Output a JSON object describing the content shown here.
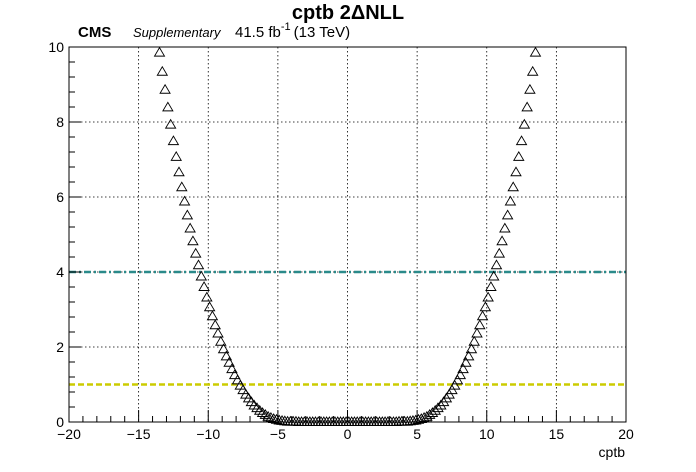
{
  "header": {
    "title": "cptb 2ΔNLL",
    "cms": "CMS",
    "supplementary": "Supplementary",
    "lumi": "41.5 fb",
    "lumi_exp": "-1",
    "energy": "(13 TeV)"
  },
  "colors": {
    "marker": "#000000",
    "line_1sigma": "#cccc00",
    "line_2sigma": "#2a8a8a",
    "grid": "#000000"
  },
  "chart_data": {
    "type": "scatter",
    "marker": "open-triangle",
    "title": "cptb 2ΔNLL",
    "xlabel": "cptb",
    "ylabel": "",
    "xlim": [
      -20,
      20
    ],
    "ylim": [
      0,
      10
    ],
    "grid": true,
    "xticks": [
      -20,
      -15,
      -10,
      -5,
      0,
      5,
      10,
      15,
      20
    ],
    "yticks": [
      0,
      2,
      4,
      6,
      8,
      10
    ],
    "series": [
      {
        "x": [
          -13.5,
          -13.3,
          -13.1,
          -12.9,
          -12.7,
          -12.5,
          -12.3,
          -12.1,
          -11.9,
          -11.7,
          -11.5,
          -11.3,
          -11.1,
          -10.9,
          -10.7,
          -10.5,
          -10.3,
          -10.1,
          -9.9,
          -9.7,
          -9.5,
          -9.3,
          -9.1,
          -8.9,
          -8.7,
          -8.5,
          -8.3,
          -8.1,
          -7.9,
          -7.7,
          -7.5,
          -7.3,
          -7.1,
          -6.9,
          -6.7,
          -6.5,
          -6.3,
          -6.1,
          -5.9,
          -5.7,
          -5.5,
          -5.3,
          -5.1,
          -4.9,
          -4.7,
          -4.5,
          -4.3,
          -4.1,
          -3.9,
          -3.7,
          -3.5,
          -3.3,
          -3.1,
          -2.9,
          -2.7,
          -2.5,
          -2.3,
          -2.1,
          -1.9,
          -1.7,
          -1.5,
          -1.3,
          -1.1,
          -0.9,
          -0.7,
          -0.5,
          -0.3,
          -0.1,
          0.1,
          0.3,
          0.5,
          0.7,
          0.9,
          1.1,
          1.3,
          1.5,
          1.7,
          1.9,
          2.1,
          2.3,
          2.5,
          2.7,
          2.9,
          3.1,
          3.3,
          3.5,
          3.7,
          3.9,
          4.1,
          4.3,
          4.5,
          4.7,
          4.9,
          5.1,
          5.3,
          5.5,
          5.7,
          5.9,
          6.1,
          6.3,
          6.5,
          6.7,
          6.9,
          7.1,
          7.3,
          7.5,
          7.7,
          7.9,
          8.1,
          8.3,
          8.5,
          8.7,
          8.9,
          9.1,
          9.3,
          9.5,
          9.7,
          9.9,
          10.1,
          10.3,
          10.5,
          10.7,
          10.9,
          11.1,
          11.3,
          11.5,
          11.7,
          11.9,
          12.1,
          12.3,
          12.5,
          12.7,
          12.9,
          13.1,
          13.3,
          13.5
        ],
        "y": [
          9.85,
          9.34,
          8.86,
          8.39,
          7.93,
          7.49,
          7.07,
          6.66,
          6.26,
          5.88,
          5.51,
          5.16,
          4.82,
          4.49,
          4.18,
          3.88,
          3.6,
          3.32,
          3.06,
          2.82,
          2.58,
          2.36,
          2.14,
          1.94,
          1.75,
          1.58,
          1.41,
          1.25,
          1.11,
          0.97,
          0.85,
          0.73,
          0.63,
          0.53,
          0.44,
          0.37,
          0.3,
          0.24,
          0.19,
          0.14,
          0.11,
          0.08,
          0.06,
          0.04,
          0.03,
          0.02,
          0.01,
          0.01,
          0.01,
          0.01,
          0.0,
          0.0,
          0.0,
          0.0,
          0.0,
          0.0,
          0.0,
          0.0,
          0.0,
          0.0,
          0.0,
          0.0,
          0.0,
          0.0,
          0.0,
          0.0,
          0.0,
          0.0,
          0.0,
          0.0,
          0.0,
          0.0,
          0.0,
          0.0,
          0.0,
          0.0,
          0.0,
          0.0,
          0.0,
          0.0,
          0.0,
          0.0,
          0.0,
          0.0,
          0.0,
          0.0,
          0.01,
          0.01,
          0.01,
          0.01,
          0.02,
          0.03,
          0.04,
          0.06,
          0.08,
          0.11,
          0.14,
          0.19,
          0.24,
          0.3,
          0.37,
          0.44,
          0.53,
          0.63,
          0.73,
          0.85,
          0.97,
          1.11,
          1.25,
          1.41,
          1.58,
          1.75,
          1.94,
          2.14,
          2.36,
          2.58,
          2.82,
          3.06,
          3.32,
          3.6,
          3.88,
          4.18,
          4.49,
          4.82,
          5.16,
          5.51,
          5.88,
          6.26,
          6.66,
          7.07,
          7.49,
          7.93,
          8.39,
          8.86,
          9.34,
          9.85
        ]
      }
    ],
    "reference_lines": [
      {
        "y": 1,
        "style": "dashed",
        "color": "#cccc00"
      },
      {
        "y": 4,
        "style": "dash-dot",
        "color": "#2a8a8a"
      }
    ]
  }
}
